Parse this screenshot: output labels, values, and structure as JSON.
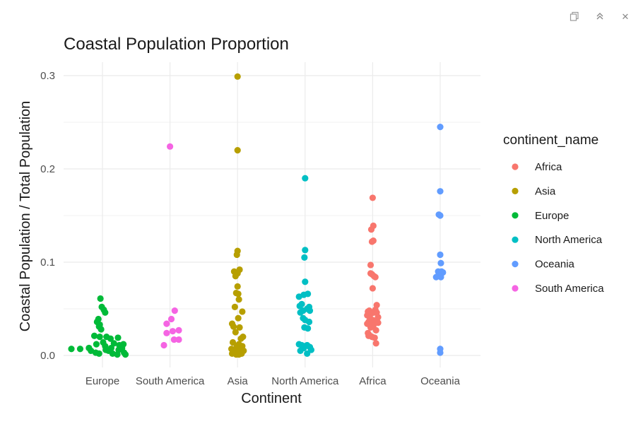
{
  "toolbar": {
    "icons": [
      "copy-icon",
      "collapse-icon",
      "close-icon"
    ],
    "close_glyph": "✕"
  },
  "chart_data": {
    "type": "scatter",
    "title": "Coastal Population Proportion",
    "xlabel": "Continent",
    "ylabel": "Coastal Population / Total Population",
    "ylim": [
      -0.003,
      0.31
    ],
    "yticks": [
      0.0,
      0.1,
      0.2,
      0.3
    ],
    "ytick_labels": [
      "0.0",
      "0.1",
      "0.2",
      "0.3"
    ],
    "grid": true,
    "categories": [
      "Europe",
      "South America",
      "Asia",
      "North America",
      "Africa",
      "Oceania"
    ],
    "legend": {
      "title": "continent_name",
      "placement": "right",
      "order": [
        "Africa",
        "Asia",
        "Europe",
        "North America",
        "Oceania",
        "South America"
      ]
    },
    "series": [
      {
        "name": "Africa",
        "category": "Africa",
        "color": "#F8766D",
        "points": [
          [
            0.0,
            0.169
          ],
          [
            0.01,
            0.139
          ],
          [
            -0.02,
            0.135
          ],
          [
            0.01,
            0.123
          ],
          [
            -0.01,
            0.122
          ],
          [
            -0.03,
            0.097
          ],
          [
            -0.03,
            0.088
          ],
          [
            -0.01,
            0.087
          ],
          [
            0.02,
            0.085
          ],
          [
            0.04,
            0.084
          ],
          [
            0.0,
            0.072
          ],
          [
            0.06,
            0.054
          ],
          [
            0.04,
            0.049
          ],
          [
            -0.07,
            0.047
          ],
          [
            -0.05,
            0.048
          ],
          [
            -0.02,
            0.045
          ],
          [
            0.02,
            0.046
          ],
          [
            0.06,
            0.046
          ],
          [
            -0.08,
            0.043
          ],
          [
            0.08,
            0.041
          ],
          [
            -0.04,
            0.04
          ],
          [
            0.0,
            0.038
          ],
          [
            0.06,
            0.038
          ],
          [
            -0.06,
            0.036
          ],
          [
            0.03,
            0.035
          ],
          [
            0.08,
            0.035
          ],
          [
            -0.08,
            0.034
          ],
          [
            0.01,
            0.032
          ],
          [
            -0.03,
            0.03
          ],
          [
            0.05,
            0.027
          ],
          [
            -0.07,
            0.024
          ],
          [
            -0.05,
            0.022
          ],
          [
            -0.01,
            0.02
          ],
          [
            0.03,
            0.019
          ],
          [
            -0.06,
            0.021
          ],
          [
            0.05,
            0.013
          ]
        ]
      },
      {
        "name": "Asia",
        "category": "Asia",
        "color": "#B79F00",
        "points": [
          [
            0.0,
            0.299
          ],
          [
            0.0,
            0.22
          ],
          [
            0.0,
            0.112
          ],
          [
            -0.01,
            0.108
          ],
          [
            0.03,
            0.092
          ],
          [
            -0.05,
            0.09
          ],
          [
            0.0,
            0.088
          ],
          [
            -0.03,
            0.085
          ],
          [
            0.0,
            0.074
          ],
          [
            -0.02,
            0.067
          ],
          [
            0.01,
            0.066
          ],
          [
            0.02,
            0.06
          ],
          [
            -0.04,
            0.052
          ],
          [
            0.07,
            0.047
          ],
          [
            0.01,
            0.04
          ],
          [
            -0.08,
            0.034
          ],
          [
            -0.06,
            0.031
          ],
          [
            0.03,
            0.03
          ],
          [
            -0.03,
            0.025
          ],
          [
            0.08,
            0.02
          ],
          [
            0.05,
            0.018
          ],
          [
            -0.07,
            0.014
          ],
          [
            0.02,
            0.012
          ],
          [
            -0.01,
            0.01
          ],
          [
            0.07,
            0.01
          ],
          [
            -0.09,
            0.007
          ],
          [
            -0.04,
            0.006
          ],
          [
            0.04,
            0.006
          ],
          [
            0.09,
            0.005
          ],
          [
            -0.06,
            0.004
          ],
          [
            0.0,
            0.003
          ],
          [
            -0.08,
            0.002
          ],
          [
            0.06,
            0.002
          ],
          [
            -0.02,
            0.001
          ],
          [
            0.02,
            0.001
          ]
        ]
      },
      {
        "name": "Europe",
        "category": "Europe",
        "color": "#00BA38",
        "points": [
          [
            -0.03,
            0.061
          ],
          [
            -0.01,
            0.052
          ],
          [
            0.02,
            0.049
          ],
          [
            0.04,
            0.046
          ],
          [
            -0.06,
            0.039
          ],
          [
            -0.08,
            0.036
          ],
          [
            -0.04,
            0.033
          ],
          [
            -0.05,
            0.031
          ],
          [
            -0.02,
            0.028
          ],
          [
            -0.12,
            0.021
          ],
          [
            0.06,
            0.02
          ],
          [
            -0.04,
            0.02
          ],
          [
            0.23,
            0.019
          ],
          [
            0.12,
            0.018
          ],
          [
            0.01,
            0.014
          ],
          [
            0.17,
            0.013
          ],
          [
            -0.09,
            0.012
          ],
          [
            0.31,
            0.012
          ],
          [
            0.25,
            0.011
          ],
          [
            0.04,
            0.01
          ],
          [
            -0.2,
            0.008
          ],
          [
            0.13,
            0.008
          ],
          [
            0.29,
            0.008
          ],
          [
            -0.46,
            0.007
          ],
          [
            -0.33,
            0.007
          ],
          [
            0.05,
            0.006
          ],
          [
            0.24,
            0.006
          ],
          [
            -0.17,
            0.005
          ],
          [
            0.09,
            0.005
          ],
          [
            -0.1,
            0.003
          ],
          [
            0.32,
            0.003
          ],
          [
            -0.05,
            0.002
          ],
          [
            0.15,
            0.002
          ],
          [
            0.34,
            0.001
          ],
          [
            0.22,
            0.001
          ]
        ]
      },
      {
        "name": "North America",
        "category": "North America",
        "color": "#00BFC4",
        "points": [
          [
            0.0,
            0.19
          ],
          [
            0.0,
            0.113
          ],
          [
            -0.01,
            0.105
          ],
          [
            0.0,
            0.079
          ],
          [
            -0.02,
            0.065
          ],
          [
            0.04,
            0.066
          ],
          [
            -0.09,
            0.063
          ],
          [
            -0.05,
            0.055
          ],
          [
            -0.08,
            0.053
          ],
          [
            0.06,
            0.052
          ],
          [
            0.03,
            0.05
          ],
          [
            -0.03,
            0.048
          ],
          [
            0.07,
            0.048
          ],
          [
            -0.07,
            0.046
          ],
          [
            -0.03,
            0.04
          ],
          [
            0.0,
            0.038
          ],
          [
            0.06,
            0.036
          ],
          [
            -0.01,
            0.03
          ],
          [
            0.04,
            0.029
          ],
          [
            -0.09,
            0.012
          ],
          [
            -0.05,
            0.011
          ],
          [
            0.0,
            0.01
          ],
          [
            0.03,
            0.011
          ],
          [
            0.07,
            0.009
          ],
          [
            -0.02,
            0.008
          ],
          [
            0.09,
            0.006
          ],
          [
            -0.07,
            0.005
          ],
          [
            0.03,
            0.002
          ]
        ]
      },
      {
        "name": "Oceania",
        "category": "Oceania",
        "color": "#619CFF",
        "points": [
          [
            0.0,
            0.245
          ],
          [
            0.0,
            0.176
          ],
          [
            -0.02,
            0.151
          ],
          [
            0.0,
            0.15
          ],
          [
            0.0,
            0.108
          ],
          [
            0.01,
            0.099
          ],
          [
            -0.03,
            0.09
          ],
          [
            0.02,
            0.09
          ],
          [
            0.04,
            0.089
          ],
          [
            -0.02,
            0.087
          ],
          [
            -0.06,
            0.084
          ],
          [
            0.01,
            0.084
          ],
          [
            0.0,
            0.007
          ],
          [
            0.0,
            0.003
          ]
        ]
      },
      {
        "name": "South America",
        "category": "South America",
        "color": "#F564E3",
        "points": [
          [
            0.0,
            0.224
          ],
          [
            0.07,
            0.048
          ],
          [
            0.02,
            0.039
          ],
          [
            -0.05,
            0.034
          ],
          [
            0.13,
            0.027
          ],
          [
            0.04,
            0.026
          ],
          [
            -0.05,
            0.024
          ],
          [
            0.06,
            0.017
          ],
          [
            0.13,
            0.017
          ],
          [
            -0.09,
            0.011
          ]
        ]
      }
    ]
  }
}
